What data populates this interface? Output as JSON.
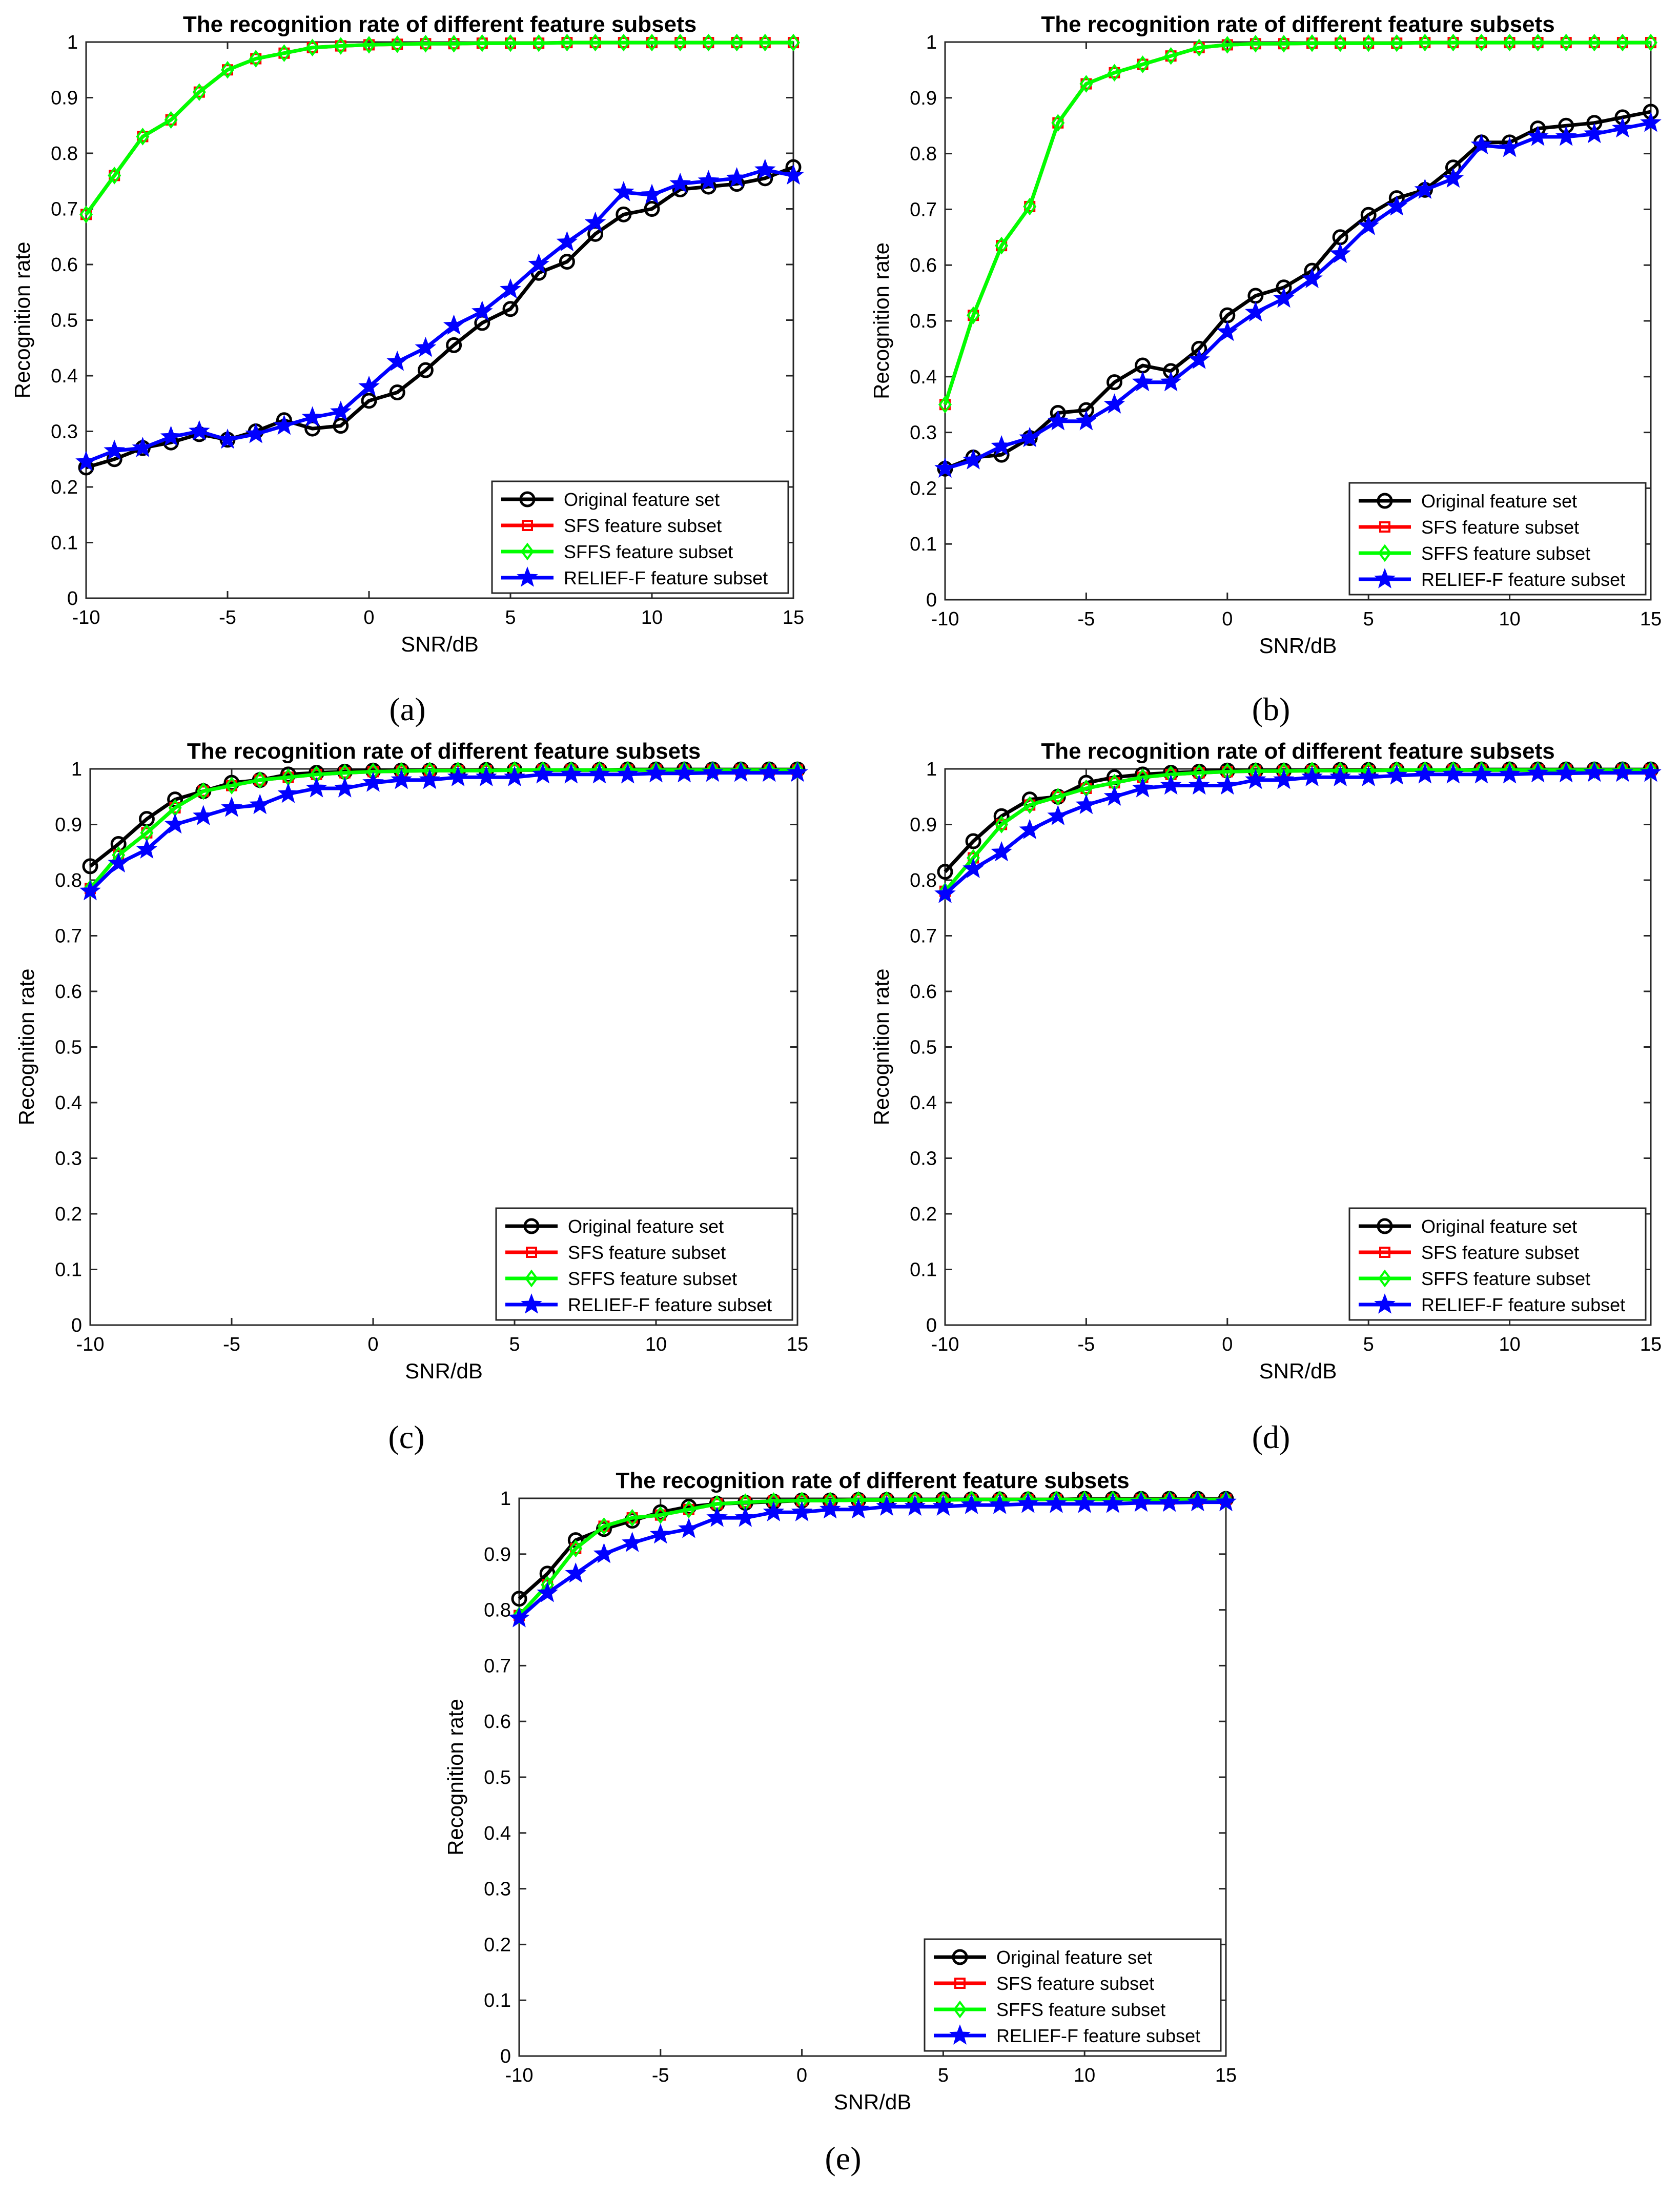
{
  "figure": {
    "panel_labels": [
      "(a)",
      "(b)",
      "(c)",
      "(d)",
      "(e)"
    ]
  },
  "colors": {
    "original": "#000000",
    "sfs": "#ff0000",
    "sffs": "#00ff00",
    "relief": "#0000ff"
  },
  "chart_data": [
    {
      "panel": "(a)",
      "type": "line",
      "title": "The recognition rate of different feature subsets",
      "xlabel": "SNR/dB",
      "ylabel": "Recognition rate",
      "xlim": [
        -10,
        15
      ],
      "ylim": [
        0,
        1
      ],
      "xticks": [
        -10,
        -5,
        0,
        5,
        10,
        15
      ],
      "yticks": [
        0,
        0.1,
        0.2,
        0.3,
        0.4,
        0.5,
        0.6,
        0.7,
        0.8,
        0.9,
        1
      ],
      "legend_position": "bottom-right",
      "x": [
        -10,
        -9,
        -8,
        -7,
        -6,
        -5,
        -4,
        -3,
        -2,
        -1,
        0,
        1,
        2,
        3,
        4,
        5,
        6,
        7,
        8,
        9,
        10,
        11,
        12,
        13,
        14,
        15
      ],
      "series": [
        {
          "name": "Original feature set",
          "key": "original",
          "marker": "circle",
          "values": [
            0.235,
            0.25,
            0.27,
            0.28,
            0.295,
            0.285,
            0.3,
            0.32,
            0.305,
            0.31,
            0.355,
            0.37,
            0.41,
            0.455,
            0.495,
            0.52,
            0.585,
            0.605,
            0.655,
            0.69,
            0.7,
            0.735,
            0.74,
            0.745,
            0.755,
            0.775
          ]
        },
        {
          "name": "SFS feature subset",
          "key": "sfs",
          "marker": "square",
          "values": [
            0.69,
            0.76,
            0.83,
            0.86,
            0.91,
            0.95,
            0.97,
            0.98,
            0.99,
            0.993,
            0.995,
            0.996,
            0.997,
            0.997,
            0.998,
            0.998,
            0.998,
            0.999,
            0.999,
            0.999,
            0.999,
            0.999,
            0.999,
            0.999,
            0.999,
            0.999
          ]
        },
        {
          "name": "SFFS feature subset",
          "key": "sffs",
          "marker": "diamond",
          "values": [
            0.69,
            0.76,
            0.83,
            0.86,
            0.91,
            0.95,
            0.97,
            0.98,
            0.99,
            0.993,
            0.995,
            0.996,
            0.997,
            0.997,
            0.998,
            0.998,
            0.998,
            0.999,
            0.999,
            0.999,
            0.999,
            0.999,
            0.999,
            0.999,
            0.999,
            0.999
          ]
        },
        {
          "name": "RELIEF-F feature subset",
          "key": "relief",
          "marker": "star",
          "values": [
            0.245,
            0.265,
            0.27,
            0.29,
            0.3,
            0.285,
            0.295,
            0.31,
            0.325,
            0.335,
            0.38,
            0.425,
            0.45,
            0.49,
            0.515,
            0.555,
            0.6,
            0.64,
            0.675,
            0.73,
            0.725,
            0.745,
            0.75,
            0.755,
            0.77,
            0.76
          ]
        }
      ]
    },
    {
      "panel": "(b)",
      "type": "line",
      "title": "The recognition rate of different feature subsets",
      "xlabel": "SNR/dB",
      "ylabel": "Recognition rate",
      "xlim": [
        -10,
        15
      ],
      "ylim": [
        0,
        1
      ],
      "xticks": [
        -10,
        -5,
        0,
        5,
        10,
        15
      ],
      "yticks": [
        0,
        0.1,
        0.2,
        0.3,
        0.4,
        0.5,
        0.6,
        0.7,
        0.8,
        0.9,
        1
      ],
      "legend_position": "bottom-right",
      "x": [
        -10,
        -9,
        -8,
        -7,
        -6,
        -5,
        -4,
        -3,
        -2,
        -1,
        0,
        1,
        2,
        3,
        4,
        5,
        6,
        7,
        8,
        9,
        10,
        11,
        12,
        13,
        14,
        15
      ],
      "series": [
        {
          "name": "Original feature set",
          "key": "original",
          "marker": "circle",
          "values": [
            0.235,
            0.255,
            0.26,
            0.29,
            0.335,
            0.34,
            0.39,
            0.42,
            0.41,
            0.45,
            0.51,
            0.545,
            0.56,
            0.59,
            0.65,
            0.69,
            0.72,
            0.735,
            0.775,
            0.82,
            0.82,
            0.845,
            0.85,
            0.855,
            0.865,
            0.875
          ]
        },
        {
          "name": "SFS feature subset",
          "key": "sfs",
          "marker": "square",
          "values": [
            0.35,
            0.51,
            0.635,
            0.705,
            0.855,
            0.925,
            0.945,
            0.96,
            0.975,
            0.99,
            0.995,
            0.997,
            0.997,
            0.998,
            0.998,
            0.998,
            0.998,
            0.999,
            0.999,
            0.999,
            0.999,
            0.999,
            0.999,
            0.999,
            0.999,
            0.999
          ]
        },
        {
          "name": "SFFS feature subset",
          "key": "sffs",
          "marker": "diamond",
          "values": [
            0.35,
            0.51,
            0.635,
            0.705,
            0.855,
            0.925,
            0.945,
            0.96,
            0.975,
            0.99,
            0.995,
            0.997,
            0.997,
            0.998,
            0.998,
            0.998,
            0.998,
            0.999,
            0.999,
            0.999,
            0.999,
            0.999,
            0.999,
            0.999,
            0.999,
            0.999
          ]
        },
        {
          "name": "RELIEF-F feature subset",
          "key": "relief",
          "marker": "star",
          "values": [
            0.235,
            0.25,
            0.275,
            0.29,
            0.32,
            0.32,
            0.35,
            0.39,
            0.39,
            0.43,
            0.48,
            0.515,
            0.54,
            0.575,
            0.62,
            0.67,
            0.705,
            0.735,
            0.755,
            0.815,
            0.81,
            0.83,
            0.83,
            0.835,
            0.845,
            0.855
          ]
        }
      ]
    },
    {
      "panel": "(c)",
      "type": "line",
      "title": "The recognition rate of different feature subsets",
      "xlabel": "SNR/dB",
      "ylabel": "Recognition rate",
      "xlim": [
        -10,
        15
      ],
      "ylim": [
        0,
        1
      ],
      "xticks": [
        -10,
        -5,
        0,
        5,
        10,
        15
      ],
      "yticks": [
        0,
        0.1,
        0.2,
        0.3,
        0.4,
        0.5,
        0.6,
        0.7,
        0.8,
        0.9,
        1
      ],
      "legend_position": "bottom-right",
      "x": [
        -10,
        -9,
        -8,
        -7,
        -6,
        -5,
        -4,
        -3,
        -2,
        -1,
        0,
        1,
        2,
        3,
        4,
        5,
        6,
        7,
        8,
        9,
        10,
        11,
        12,
        13,
        14,
        15
      ],
      "series": [
        {
          "name": "Original feature set",
          "key": "original",
          "marker": "circle",
          "values": [
            0.825,
            0.865,
            0.91,
            0.945,
            0.96,
            0.975,
            0.98,
            0.99,
            0.993,
            0.995,
            0.997,
            0.997,
            0.997,
            0.997,
            0.998,
            0.998,
            0.998,
            0.998,
            0.998,
            0.999,
            0.999,
            0.999,
            0.999,
            0.999,
            0.999,
            0.999
          ]
        },
        {
          "name": "SFS feature subset",
          "key": "sfs",
          "marker": "square",
          "values": [
            0.785,
            0.845,
            0.885,
            0.93,
            0.96,
            0.97,
            0.98,
            0.985,
            0.99,
            0.993,
            0.995,
            0.996,
            0.997,
            0.997,
            0.997,
            0.998,
            0.998,
            0.998,
            0.998,
            0.998,
            0.998,
            0.998,
            0.998,
            0.998,
            0.998,
            0.998
          ]
        },
        {
          "name": "SFFS feature subset",
          "key": "sffs",
          "marker": "diamond",
          "values": [
            0.785,
            0.845,
            0.885,
            0.93,
            0.96,
            0.97,
            0.98,
            0.985,
            0.99,
            0.993,
            0.995,
            0.996,
            0.997,
            0.997,
            0.997,
            0.998,
            0.998,
            0.998,
            0.998,
            0.998,
            0.998,
            0.998,
            0.998,
            0.998,
            0.998,
            0.998
          ]
        },
        {
          "name": "RELIEF-F feature subset",
          "key": "relief",
          "marker": "star",
          "values": [
            0.78,
            0.83,
            0.855,
            0.9,
            0.915,
            0.93,
            0.935,
            0.955,
            0.965,
            0.965,
            0.975,
            0.98,
            0.98,
            0.985,
            0.985,
            0.985,
            0.99,
            0.99,
            0.99,
            0.99,
            0.992,
            0.992,
            0.993,
            0.993,
            0.993,
            0.993
          ]
        }
      ]
    },
    {
      "panel": "(d)",
      "type": "line",
      "title": "The recognition rate of different feature subsets",
      "xlabel": "SNR/dB",
      "ylabel": "Recognition rate",
      "xlim": [
        -10,
        15
      ],
      "ylim": [
        0,
        1
      ],
      "xticks": [
        -10,
        -5,
        0,
        5,
        10,
        15
      ],
      "yticks": [
        0,
        0.1,
        0.2,
        0.3,
        0.4,
        0.5,
        0.6,
        0.7,
        0.8,
        0.9,
        1
      ],
      "legend_position": "bottom-right",
      "x": [
        -10,
        -9,
        -8,
        -7,
        -6,
        -5,
        -4,
        -3,
        -2,
        -1,
        0,
        1,
        2,
        3,
        4,
        5,
        6,
        7,
        8,
        9,
        10,
        11,
        12,
        13,
        14,
        15
      ],
      "series": [
        {
          "name": "Original feature set",
          "key": "original",
          "marker": "circle",
          "values": [
            0.815,
            0.87,
            0.915,
            0.945,
            0.95,
            0.975,
            0.985,
            0.99,
            0.993,
            0.995,
            0.997,
            0.997,
            0.997,
            0.997,
            0.998,
            0.998,
            0.998,
            0.998,
            0.998,
            0.999,
            0.999,
            0.999,
            0.999,
            0.999,
            0.999,
            0.999
          ]
        },
        {
          "name": "SFS feature subset",
          "key": "sfs",
          "marker": "square",
          "values": [
            0.78,
            0.84,
            0.9,
            0.935,
            0.95,
            0.965,
            0.975,
            0.985,
            0.99,
            0.993,
            0.995,
            0.996,
            0.996,
            0.997,
            0.997,
            0.997,
            0.998,
            0.998,
            0.998,
            0.998,
            0.998,
            0.998,
            0.998,
            0.998,
            0.998,
            0.998
          ]
        },
        {
          "name": "SFFS feature subset",
          "key": "sffs",
          "marker": "diamond",
          "values": [
            0.78,
            0.84,
            0.9,
            0.935,
            0.95,
            0.965,
            0.975,
            0.985,
            0.99,
            0.993,
            0.995,
            0.996,
            0.996,
            0.997,
            0.997,
            0.997,
            0.998,
            0.998,
            0.998,
            0.998,
            0.998,
            0.998,
            0.998,
            0.998,
            0.998,
            0.998
          ]
        },
        {
          "name": "RELIEF-F feature subset",
          "key": "relief",
          "marker": "star",
          "values": [
            0.775,
            0.82,
            0.85,
            0.89,
            0.915,
            0.935,
            0.95,
            0.965,
            0.97,
            0.97,
            0.97,
            0.98,
            0.98,
            0.985,
            0.985,
            0.985,
            0.988,
            0.99,
            0.99,
            0.99,
            0.99,
            0.992,
            0.992,
            0.993,
            0.993,
            0.993
          ]
        }
      ]
    },
    {
      "panel": "(e)",
      "type": "line",
      "title": "The recognition rate of different feature subsets",
      "xlabel": "SNR/dB",
      "ylabel": "Recognition rate",
      "xlim": [
        -10,
        15
      ],
      "ylim": [
        0,
        1
      ],
      "xticks": [
        -10,
        -5,
        0,
        5,
        10,
        15
      ],
      "yticks": [
        0,
        0.1,
        0.2,
        0.3,
        0.4,
        0.5,
        0.6,
        0.7,
        0.8,
        0.9,
        1
      ],
      "legend_position": "bottom-right",
      "x": [
        -10,
        -9,
        -8,
        -7,
        -6,
        -5,
        -4,
        -3,
        -2,
        -1,
        0,
        1,
        2,
        3,
        4,
        5,
        6,
        7,
        8,
        9,
        10,
        11,
        12,
        13,
        14,
        15
      ],
      "series": [
        {
          "name": "Original feature set",
          "key": "original",
          "marker": "circle",
          "values": [
            0.82,
            0.865,
            0.925,
            0.945,
            0.96,
            0.975,
            0.985,
            0.99,
            0.992,
            0.994,
            0.996,
            0.996,
            0.997,
            0.997,
            0.997,
            0.998,
            0.998,
            0.998,
            0.998,
            0.998,
            0.999,
            0.999,
            0.999,
            0.999,
            0.999,
            0.999
          ]
        },
        {
          "name": "SFS feature subset",
          "key": "sfs",
          "marker": "square",
          "values": [
            0.79,
            0.845,
            0.91,
            0.95,
            0.965,
            0.97,
            0.98,
            0.99,
            0.993,
            0.995,
            0.996,
            0.996,
            0.997,
            0.997,
            0.997,
            0.997,
            0.998,
            0.998,
            0.998,
            0.998,
            0.998,
            0.998,
            0.998,
            0.998,
            0.998,
            0.998
          ]
        },
        {
          "name": "SFFS feature subset",
          "key": "sffs",
          "marker": "diamond",
          "values": [
            0.79,
            0.845,
            0.91,
            0.95,
            0.965,
            0.97,
            0.98,
            0.99,
            0.993,
            0.995,
            0.996,
            0.996,
            0.997,
            0.997,
            0.997,
            0.997,
            0.998,
            0.998,
            0.998,
            0.998,
            0.998,
            0.998,
            0.998,
            0.998,
            0.998,
            0.998
          ]
        },
        {
          "name": "RELIEF-F feature subset",
          "key": "relief",
          "marker": "star",
          "values": [
            0.785,
            0.83,
            0.865,
            0.9,
            0.92,
            0.935,
            0.945,
            0.965,
            0.965,
            0.975,
            0.975,
            0.98,
            0.98,
            0.985,
            0.985,
            0.985,
            0.988,
            0.988,
            0.99,
            0.99,
            0.99,
            0.99,
            0.992,
            0.992,
            0.993,
            0.993
          ]
        }
      ]
    }
  ]
}
